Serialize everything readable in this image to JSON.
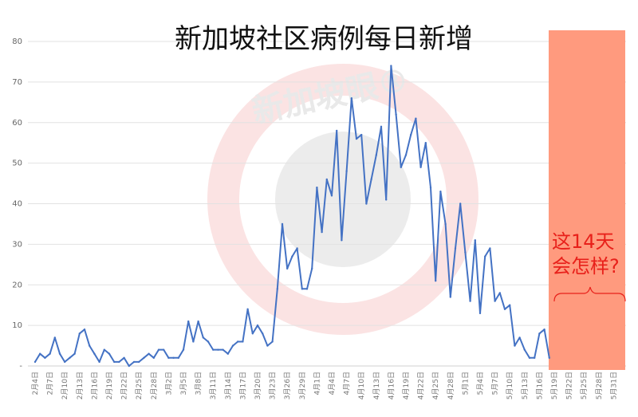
{
  "chart_data": {
    "type": "line",
    "title": "新加坡社区病例每日新增",
    "xlabel": "",
    "ylabel": "",
    "ylim": [
      0,
      80
    ],
    "yticks": [
      0,
      10,
      20,
      30,
      40,
      50,
      60,
      70,
      80
    ],
    "ytick_labels": [
      "-",
      "10",
      "20",
      "30",
      "40",
      "50",
      "60",
      "70",
      "80"
    ],
    "grid": true,
    "line_color": "#4472C4",
    "x": [
      "2月4日",
      "2月5日",
      "2月6日",
      "2月7日",
      "2月8日",
      "2月9日",
      "2月10日",
      "2月11日",
      "2月12日",
      "2月13日",
      "2月14日",
      "2月15日",
      "2月16日",
      "2月17日",
      "2月18日",
      "2月19日",
      "2月20日",
      "2月21日",
      "2月22日",
      "2月23日",
      "2月24日",
      "2月25日",
      "2月26日",
      "2月27日",
      "2月28日",
      "2月29日",
      "3月1日",
      "3月2日",
      "3月3日",
      "3月4日",
      "3月5日",
      "3月6日",
      "3月7日",
      "3月8日",
      "3月9日",
      "3月10日",
      "3月11日",
      "3月12日",
      "3月13日",
      "3月14日",
      "3月15日",
      "3月16日",
      "3月17日",
      "3月18日",
      "3月19日",
      "3月20日",
      "3月21日",
      "3月22日",
      "3月23日",
      "3月24日",
      "3月25日",
      "3月26日",
      "3月27日",
      "3月28日",
      "3月29日",
      "3月30日",
      "3月31日",
      "4月1日",
      "4月2日",
      "4月3日",
      "4月4日",
      "4月5日",
      "4月6日",
      "4月7日",
      "4月8日",
      "4月9日",
      "4月10日",
      "4月11日",
      "4月12日",
      "4月13日",
      "4月14日",
      "4月15日",
      "4月16日",
      "4月17日",
      "4月18日",
      "4月19日",
      "4月20日",
      "4月21日",
      "4月22日",
      "4月23日",
      "4月24日",
      "4月25日",
      "4月26日",
      "4月27日",
      "4月28日",
      "4月29日",
      "4月30日",
      "5月1日",
      "5月2日",
      "5月3日",
      "5月4日",
      "5月5日",
      "5月6日",
      "5月7日",
      "5月8日",
      "5月9日",
      "5月10日",
      "5月11日",
      "5月12日",
      "5月13日",
      "5月14日",
      "5月15日",
      "5月16日",
      "5月17日",
      "5月18日"
    ],
    "values": [
      1,
      3,
      2,
      3,
      7,
      3,
      1,
      2,
      3,
      8,
      9,
      5,
      3,
      1,
      4,
      3,
      1,
      1,
      2,
      0,
      1,
      1,
      2,
      3,
      2,
      4,
      4,
      2,
      2,
      2,
      4,
      11,
      6,
      11,
      7,
      6,
      4,
      4,
      4,
      3,
      5,
      6,
      6,
      14,
      8,
      10,
      8,
      5,
      6,
      19,
      35,
      24,
      27,
      29,
      19,
      19,
      24,
      44,
      33,
      46,
      42,
      58,
      31,
      48,
      66,
      56,
      57,
      40,
      46,
      52,
      59,
      41,
      74,
      62,
      49,
      52,
      57,
      61,
      49,
      55,
      44,
      21,
      43,
      35,
      17,
      29,
      40,
      28,
      16,
      31,
      13,
      27,
      29,
      16,
      18,
      14,
      15,
      5,
      7,
      4,
      2,
      2,
      8,
      9,
      2
    ],
    "tick_labels": [
      "2月4日",
      "2月7日",
      "2月10日",
      "2月13日",
      "2月16日",
      "2月19日",
      "2月22日",
      "2月25日",
      "2月28日",
      "3月2日",
      "3月5日",
      "3月8日",
      "3月11日",
      "3月14日",
      "3月17日",
      "3月20日",
      "3月23日",
      "3月26日",
      "3月29日",
      "4月1日",
      "4月4日",
      "4月7日",
      "4月10日",
      "4月13日",
      "4月16日",
      "4月19日",
      "4月22日",
      "4月25日",
      "4月28日",
      "5月1日",
      "5月4日",
      "5月7日",
      "5月10日",
      "5月13日",
      "5月16日",
      "5月19日",
      "5月22日",
      "5月25日",
      "5月28日",
      "5月31日"
    ],
    "highlight": {
      "color": "#FF9A7E",
      "from": "5月18日",
      "to": "5月31日"
    },
    "annotation": {
      "line1": "这14天",
      "line2": "会怎样?",
      "color": "#E8201A"
    }
  },
  "watermark": {
    "text": "新加坡眼®"
  }
}
